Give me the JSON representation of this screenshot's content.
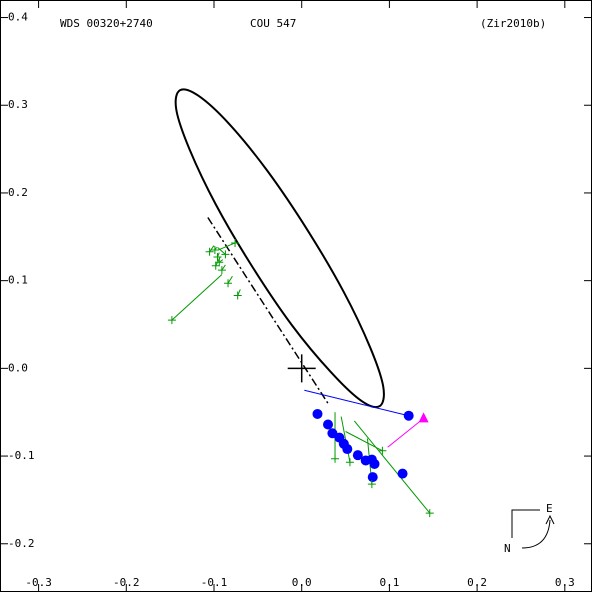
{
  "chart_data": {
    "type": "orbit",
    "title": "WDS 00320+2740",
    "subtitle": "COU 547",
    "reference": "(Zir2010b)",
    "compass_e": "E",
    "compass_n": "N",
    "xlim": [
      -0.344,
      0.331
    ],
    "ylim": [
      -0.255,
      0.42
    ],
    "xticks": [
      -0.3,
      -0.2,
      -0.1,
      {
        "value": 0,
        "label": "0.0"
      },
      0.1,
      0.2,
      0.3
    ],
    "yticks": [
      -0.2,
      -0.1,
      {
        "value": 0,
        "label": "0.0"
      },
      0.1,
      0.2,
      0.3,
      0.4
    ],
    "orbit": {
      "color": "#000000",
      "x": [
        -0.139,
        -0.143,
        -0.128,
        -0.098,
        -0.057,
        -0.011,
        0.033,
        0.068,
        0.089,
        0.093,
        0.078,
        0.048,
        0.007,
        -0.039,
        -0.083,
        -0.118
      ],
      "y": [
        0.317,
        0.295,
        0.25,
        0.187,
        0.117,
        0.049,
        -0.004,
        -0.037,
        -0.043,
        -0.021,
        0.024,
        0.087,
        0.157,
        0.225,
        0.279,
        0.311
      ]
    },
    "line_of_nodes": {
      "x": [
        -0.107,
        0.03
      ],
      "y": [
        0.172,
        -0.04
      ]
    },
    "primary": {
      "x": 0,
      "y": 0
    },
    "series": [
      {
        "marker": "circle",
        "color": "#0000ff",
        "x": [
          0.122,
          0.018,
          0.03,
          0.035,
          0.043,
          0.048,
          0.052,
          0.064,
          0.073,
          0.08,
          0.083,
          0.115,
          0.081
        ],
        "y": [
          -0.054,
          -0.052,
          -0.064,
          -0.074,
          -0.079,
          -0.086,
          -0.092,
          -0.099,
          -0.105,
          -0.104,
          -0.109,
          -0.12,
          -0.124
        ],
        "x_pred": [
          0.003,
          null,
          null,
          null,
          null,
          null,
          null,
          null,
          null,
          null,
          null,
          null,
          null
        ],
        "y_pred": [
          -0.025,
          null,
          null,
          null,
          null,
          null,
          null,
          null,
          null,
          null,
          null,
          null,
          null
        ]
      },
      {
        "marker": "plus",
        "color": "#009900",
        "x": [
          -0.148,
          0.146,
          0.038,
          0.055,
          0.08,
          0.092,
          -0.105,
          -0.099,
          -0.096,
          -0.098,
          -0.094,
          -0.091,
          -0.084,
          -0.073,
          -0.076,
          -0.087
        ],
        "y": [
          0.055,
          -0.165,
          -0.103,
          -0.107,
          -0.132,
          -0.094,
          0.133,
          0.135,
          0.127,
          0.117,
          0.121,
          0.112,
          0.097,
          0.083,
          0.143,
          0.13
        ],
        "x_pred": [
          -0.091,
          0.06,
          0.038,
          0.045,
          0.075,
          0.05,
          -0.1,
          -0.097,
          -0.094,
          -0.093,
          -0.09,
          -0.087,
          -0.079,
          -0.07,
          -0.095,
          -0.096
        ],
        "y_pred": [
          0.107,
          -0.06,
          -0.05,
          -0.055,
          -0.08,
          -0.072,
          0.14,
          0.138,
          0.132,
          0.127,
          0.124,
          0.118,
          0.105,
          0.09,
          0.135,
          0.138
        ]
      },
      {
        "marker": "triangle",
        "color": "#ff00ff",
        "x": [
          0.139
        ],
        "y": [
          -0.057
        ],
        "x_pred": [
          0.098
        ],
        "y_pred": [
          -0.09
        ]
      }
    ]
  }
}
